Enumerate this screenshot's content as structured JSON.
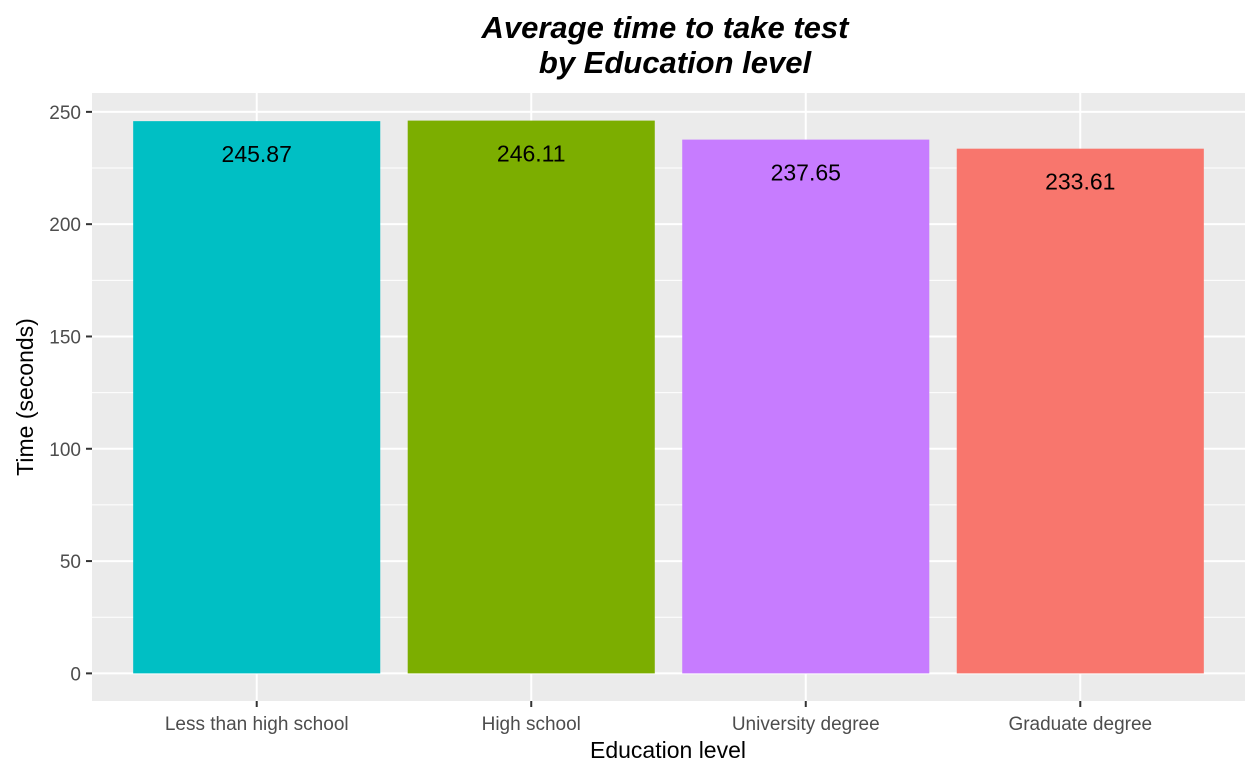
{
  "chart_data": {
    "type": "bar",
    "title_line1": "Average time to take test",
    "title_line2": "by Education level",
    "xlabel": "Education level",
    "ylabel": "Time (seconds)",
    "categories": [
      "Less than high school",
      "High school",
      "University degree",
      "Graduate degree"
    ],
    "values": [
      245.87,
      246.11,
      237.65,
      233.61
    ],
    "value_labels": [
      "245.87",
      "246.11",
      "237.65",
      "233.61"
    ],
    "colors": [
      "#00BFC4",
      "#7CAE00",
      "#C77CFF",
      "#F8766D"
    ],
    "yticks": [
      0,
      50,
      100,
      150,
      200,
      250
    ],
    "ylim": [
      -12.3,
      258.4
    ],
    "grid": true,
    "panel_background": "#EBEBEB",
    "legend": "none"
  }
}
